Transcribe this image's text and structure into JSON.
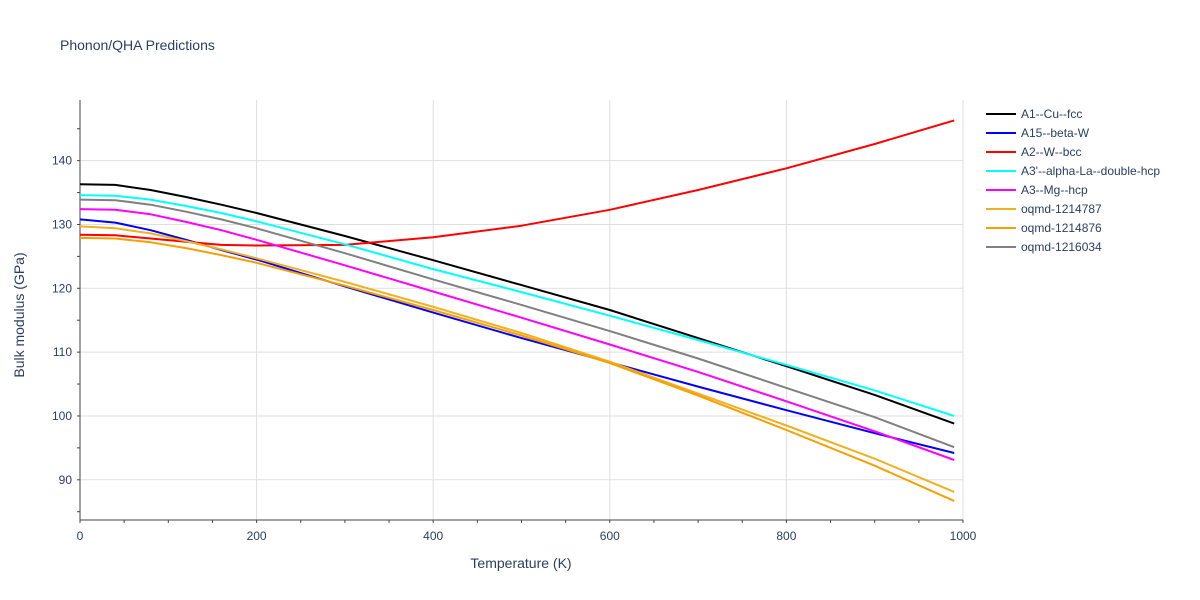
{
  "chart_data": {
    "type": "line",
    "title": "Phonon/QHA Predictions",
    "xlabel": "Temperature (K)",
    "ylabel": "Bulk modulus (GPa)",
    "xlim": [
      0,
      1000
    ],
    "ylim": [
      83.7,
      149.5
    ],
    "xticks": [
      0,
      200,
      400,
      600,
      800,
      1000
    ],
    "yticks": [
      90,
      100,
      110,
      120,
      130,
      140
    ],
    "grid": true,
    "legend_position": "right",
    "x": [
      0,
      40,
      80,
      120,
      160,
      200,
      300,
      400,
      500,
      600,
      700,
      800,
      900,
      990
    ],
    "series": [
      {
        "name": "A1--Cu--fcc",
        "color": "#000000",
        "values": [
          136.3,
          136.2,
          135.4,
          134.3,
          133.1,
          131.8,
          128.2,
          124.4,
          120.5,
          116.6,
          112.2,
          107.8,
          103.3,
          98.8
        ]
      },
      {
        "name": "A15--beta-W",
        "color": "#0000ff",
        "values": [
          130.8,
          130.3,
          129.1,
          127.6,
          126.0,
          124.5,
          120.3,
          116.2,
          112.2,
          108.4,
          104.6,
          100.9,
          97.3,
          94.2
        ]
      },
      {
        "name": "A2--W--bcc",
        "color": "#ff0000",
        "values": [
          128.4,
          128.3,
          127.8,
          127.3,
          126.8,
          126.7,
          126.8,
          128.0,
          129.8,
          132.3,
          135.4,
          138.8,
          142.6,
          146.3
        ]
      },
      {
        "name": "A3'--alpha-La--double-hcp",
        "color": "#00ffff",
        "values": [
          134.6,
          134.5,
          133.9,
          132.9,
          131.8,
          130.5,
          126.9,
          123.0,
          119.4,
          115.7,
          111.9,
          108.0,
          104.0,
          100.0
        ]
      },
      {
        "name": "A3--Mg--hcp",
        "color": "#ff00ff",
        "values": [
          132.4,
          132.3,
          131.6,
          130.4,
          129.1,
          127.6,
          123.6,
          119.5,
          115.4,
          111.2,
          106.9,
          102.3,
          97.6,
          93.1
        ]
      },
      {
        "name": "oqmd-1214787",
        "color": "#f0b020",
        "values": [
          129.7,
          129.4,
          128.6,
          127.4,
          126.1,
          124.7,
          121.0,
          117.1,
          113.0,
          108.5,
          103.5,
          98.5,
          93.3,
          88.1
        ]
      },
      {
        "name": "oqmd-1214876",
        "color": "#f5a000",
        "values": [
          127.9,
          127.8,
          127.2,
          126.3,
          125.2,
          124.0,
          120.4,
          116.6,
          112.6,
          108.3,
          103.2,
          97.8,
          92.2,
          86.7
        ]
      },
      {
        "name": "oqmd-1216034",
        "color": "#808080",
        "values": [
          133.9,
          133.8,
          133.1,
          132.0,
          130.8,
          129.4,
          125.5,
          121.4,
          117.4,
          113.3,
          109.0,
          104.4,
          99.8,
          95.1
        ]
      }
    ]
  }
}
